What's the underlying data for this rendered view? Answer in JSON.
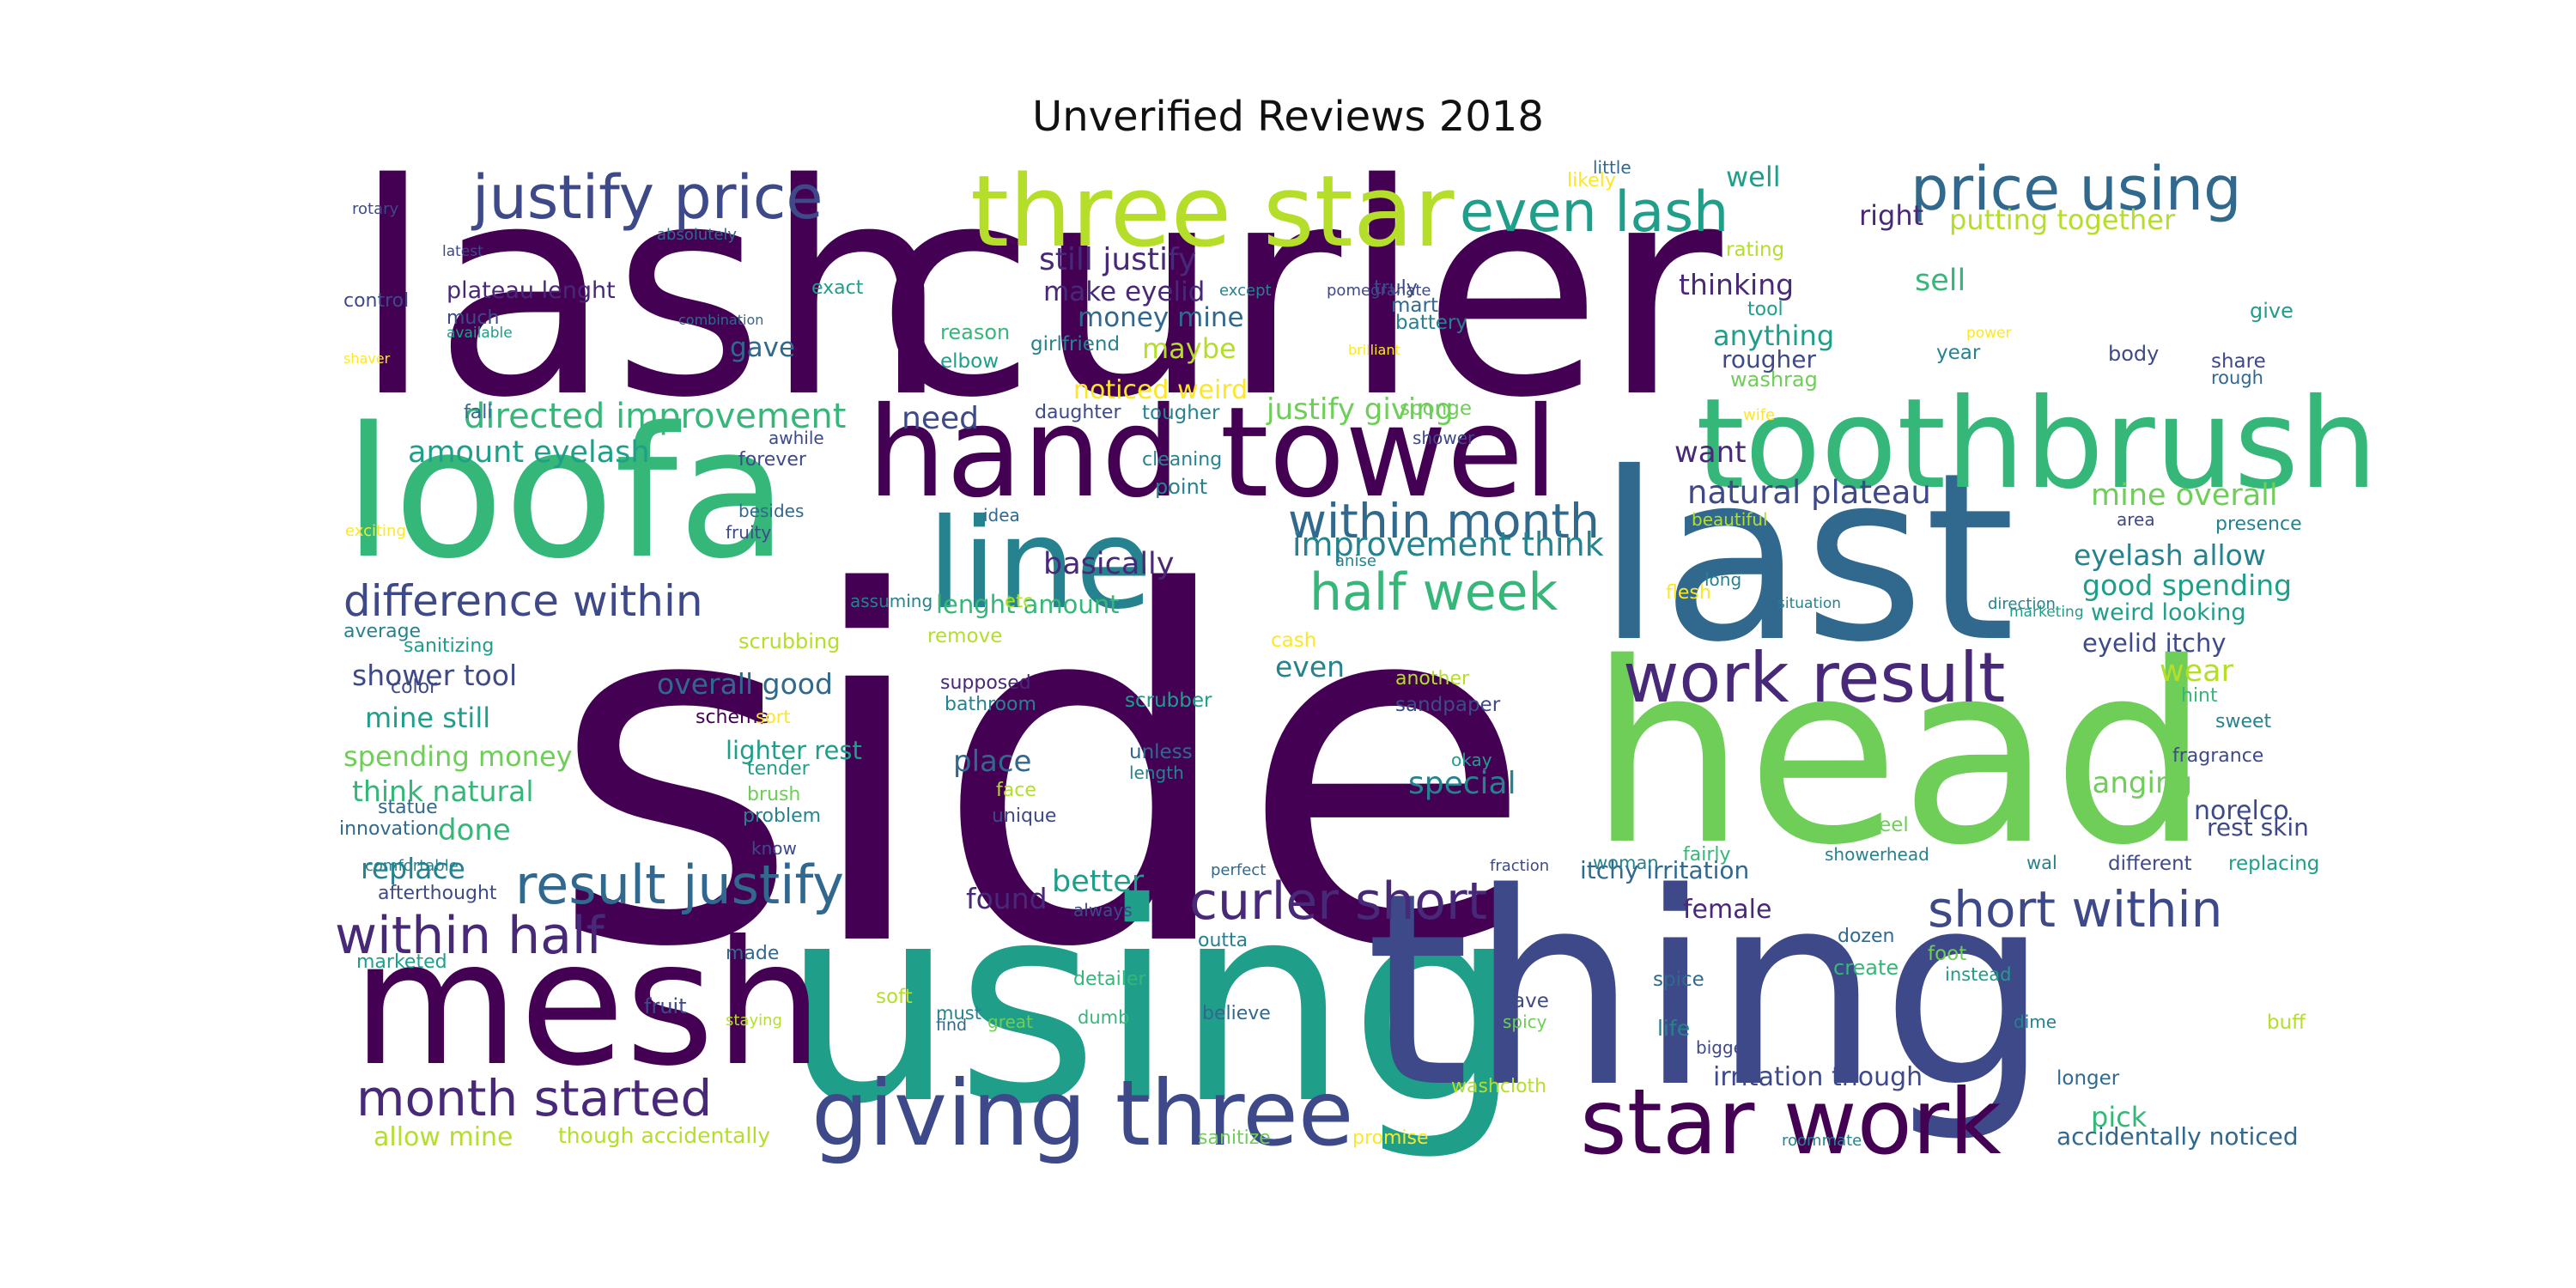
{
  "title": "Unverified Reviews 2018",
  "palette": [
    "#440154",
    "#482878",
    "#3e4989",
    "#31688e",
    "#26828e",
    "#1f9e89",
    "#35b779",
    "#6ece58",
    "#b5de2b",
    "#fde725"
  ],
  "words": [
    {
      "text": "side",
      "color": "#440154"
    },
    {
      "text": "lash",
      "color": "#440154"
    },
    {
      "text": "curler",
      "color": "#440154"
    },
    {
      "text": "using",
      "color": "#1f9e89"
    },
    {
      "text": "thing",
      "color": "#3e4989"
    },
    {
      "text": "head",
      "color": "#6ece58"
    },
    {
      "text": "last",
      "color": "#31688e"
    },
    {
      "text": "loofa",
      "color": "#35b779"
    },
    {
      "text": "mesh",
      "color": "#440154"
    },
    {
      "text": "hand towel",
      "color": "#440154"
    },
    {
      "text": "toothbrush",
      "color": "#35b779"
    },
    {
      "text": "line",
      "color": "#26828e"
    },
    {
      "text": "three star",
      "color": "#b5de2b"
    },
    {
      "text": "giving three",
      "color": "#3e4989"
    },
    {
      "text": "star work",
      "color": "#440154"
    },
    {
      "text": "work result",
      "color": "#482878"
    },
    {
      "text": "justify price",
      "color": "#3e4989"
    },
    {
      "text": "price using",
      "color": "#31688e"
    },
    {
      "text": "even lash",
      "color": "#1f9e89"
    },
    {
      "text": "half week",
      "color": "#35b779"
    },
    {
      "text": "within month",
      "color": "#31688e"
    },
    {
      "text": "curler short",
      "color": "#482878"
    },
    {
      "text": "short within",
      "color": "#3e4989"
    },
    {
      "text": "result justify",
      "color": "#31688e"
    },
    {
      "text": "within half",
      "color": "#482878"
    },
    {
      "text": "month started",
      "color": "#482878"
    },
    {
      "text": "difference within",
      "color": "#3e4989"
    },
    {
      "text": "directed improvement",
      "color": "#35b779"
    },
    {
      "text": "amount eyelash",
      "color": "#1f9e89"
    },
    {
      "text": "improvement think",
      "color": "#26828e"
    },
    {
      "text": "natural plateau",
      "color": "#3e4989"
    },
    {
      "text": "mine overall",
      "color": "#6ece58"
    },
    {
      "text": "eyelash allow",
      "color": "#26828e"
    },
    {
      "text": "good spending",
      "color": "#1f9e89"
    },
    {
      "text": "still justify",
      "color": "#482878"
    },
    {
      "text": "make eyelid",
      "color": "#482878"
    },
    {
      "text": "money mine",
      "color": "#31688e"
    },
    {
      "text": "justify giving",
      "color": "#6ece58"
    },
    {
      "text": "plateau lenght",
      "color": "#482878"
    },
    {
      "text": "putting together",
      "color": "#b5de2b"
    },
    {
      "text": "shower tool",
      "color": "#3e4989"
    },
    {
      "text": "overall good",
      "color": "#31688e"
    },
    {
      "text": "mine still",
      "color": "#1f9e89"
    },
    {
      "text": "spending money",
      "color": "#6ece58"
    },
    {
      "text": "think natural",
      "color": "#35b779"
    },
    {
      "text": "lighter rest",
      "color": "#1f9e89"
    },
    {
      "text": "itchy irritation",
      "color": "#31688e"
    },
    {
      "text": "irritation though",
      "color": "#3e4989"
    },
    {
      "text": "accidentally noticed",
      "color": "#31688e"
    },
    {
      "text": "allow mine",
      "color": "#b5de2b"
    },
    {
      "text": "though accidentally",
      "color": "#b5de2b"
    },
    {
      "text": "eyelid itchy",
      "color": "#3e4989"
    },
    {
      "text": "weird looking",
      "color": "#1f9e89"
    },
    {
      "text": "rest skin",
      "color": "#3e4989"
    },
    {
      "text": "noticed weird",
      "color": "#fde725"
    },
    {
      "text": "lenght amount",
      "color": "#35b779"
    },
    {
      "text": "well",
      "color": "#1f9e89"
    },
    {
      "text": "right",
      "color": "#482878"
    },
    {
      "text": "sell",
      "color": "#35b779"
    },
    {
      "text": "thinking",
      "color": "#482878"
    },
    {
      "text": "anything",
      "color": "#1f9e89"
    },
    {
      "text": "rougher",
      "color": "#3e4989"
    },
    {
      "text": "need",
      "color": "#3e4989"
    },
    {
      "text": "gave",
      "color": "#31688e"
    },
    {
      "text": "maybe",
      "color": "#b5de2b"
    },
    {
      "text": "want",
      "color": "#482878"
    },
    {
      "text": "basically",
      "color": "#482878"
    },
    {
      "text": "place",
      "color": "#31688e"
    },
    {
      "text": "special",
      "color": "#26828e"
    },
    {
      "text": "hanging",
      "color": "#6ece58"
    },
    {
      "text": "wear",
      "color": "#b5de2b"
    },
    {
      "text": "norelco",
      "color": "#3e4989"
    },
    {
      "text": "done",
      "color": "#35b779"
    },
    {
      "text": "replace",
      "color": "#26828e"
    },
    {
      "text": "better",
      "color": "#1f9e89"
    },
    {
      "text": "found",
      "color": "#482878"
    },
    {
      "text": "female",
      "color": "#482878"
    },
    {
      "text": "even",
      "color": "#26828e"
    },
    {
      "text": "pick",
      "color": "#35b779"
    },
    {
      "text": "rating",
      "color": "#b5de2b"
    },
    {
      "text": "tool",
      "color": "#1f9e89"
    },
    {
      "text": "year",
      "color": "#26828e"
    },
    {
      "text": "washrag",
      "color": "#6ece58"
    },
    {
      "text": "body",
      "color": "#3e4989"
    },
    {
      "text": "share",
      "color": "#3e4989"
    },
    {
      "text": "rough",
      "color": "#31688e"
    },
    {
      "text": "give",
      "color": "#1f9e89"
    },
    {
      "text": "mart",
      "color": "#31688e"
    },
    {
      "text": "truly",
      "color": "#3e4989"
    },
    {
      "text": "battery",
      "color": "#26828e"
    },
    {
      "text": "exact",
      "color": "#1f9e89"
    },
    {
      "text": "reason",
      "color": "#35b779"
    },
    {
      "text": "elbow",
      "color": "#1f9e89"
    },
    {
      "text": "girlfriend",
      "color": "#26828e"
    },
    {
      "text": "daughter",
      "color": "#3e4989"
    },
    {
      "text": "tougher",
      "color": "#26828e"
    },
    {
      "text": "cleaning",
      "color": "#26828e"
    },
    {
      "text": "point",
      "color": "#26828e"
    },
    {
      "text": "sponge",
      "color": "#6ece58"
    },
    {
      "text": "shower",
      "color": "#3e4989"
    },
    {
      "text": "idea",
      "color": "#31688e"
    },
    {
      "text": "forever",
      "color": "#3e4989"
    },
    {
      "text": "awhile",
      "color": "#3e4989"
    },
    {
      "text": "fall",
      "color": "#31688e"
    },
    {
      "text": "much",
      "color": "#3e4989"
    },
    {
      "text": "control",
      "color": "#3e4989"
    },
    {
      "text": "besides",
      "color": "#31688e"
    },
    {
      "text": "fruity",
      "color": "#3e4989"
    },
    {
      "text": "assuming",
      "color": "#26828e"
    },
    {
      "text": "etc",
      "color": "#b5de2b"
    },
    {
      "text": "remove",
      "color": "#b5de2b"
    },
    {
      "text": "supposed",
      "color": "#482878"
    },
    {
      "text": "bathroom",
      "color": "#26828e"
    },
    {
      "text": "scrubber",
      "color": "#1f9e89"
    },
    {
      "text": "another",
      "color": "#b5de2b"
    },
    {
      "text": "sandpaper",
      "color": "#3e4989"
    },
    {
      "text": "okay",
      "color": "#1f9e89"
    },
    {
      "text": "unless",
      "color": "#31688e"
    },
    {
      "text": "length",
      "color": "#26828e"
    },
    {
      "text": "cash",
      "color": "#fde725"
    },
    {
      "text": "flesh",
      "color": "#fde725"
    },
    {
      "text": "scrubbing",
      "color": "#b5de2b"
    },
    {
      "text": "sanitizing",
      "color": "#1f9e89"
    },
    {
      "text": "average",
      "color": "#26828e"
    },
    {
      "text": "color",
      "color": "#3e4989"
    },
    {
      "text": "scheme",
      "color": "#440154"
    },
    {
      "text": "sort",
      "color": "#fde725"
    },
    {
      "text": "tender",
      "color": "#1f9e89"
    },
    {
      "text": "brush",
      "color": "#6ece58"
    },
    {
      "text": "face",
      "color": "#b5de2b"
    },
    {
      "text": "statue",
      "color": "#31688e"
    },
    {
      "text": "problem",
      "color": "#26828e"
    },
    {
      "text": "unique",
      "color": "#3e4989"
    },
    {
      "text": "innovation",
      "color": "#31688e"
    },
    {
      "text": "know",
      "color": "#3e4989"
    },
    {
      "text": "comfortable",
      "color": "#26828e"
    },
    {
      "text": "afterthought",
      "color": "#3e4989"
    },
    {
      "text": "perfect",
      "color": "#31688e"
    },
    {
      "text": "always",
      "color": "#3e4989"
    },
    {
      "text": "outta",
      "color": "#26828e"
    },
    {
      "text": "made",
      "color": "#31688e"
    },
    {
      "text": "marketed",
      "color": "#1f9e89"
    },
    {
      "text": "detailer",
      "color": "#35b779"
    },
    {
      "text": "dumb",
      "color": "#35b779"
    },
    {
      "text": "believe",
      "color": "#31688e"
    },
    {
      "text": "soft",
      "color": "#b5de2b"
    },
    {
      "text": "must",
      "color": "#26828e"
    },
    {
      "text": "find",
      "color": "#31688e"
    },
    {
      "text": "great",
      "color": "#6ece58"
    },
    {
      "text": "fruit",
      "color": "#3e4989"
    },
    {
      "text": "staying",
      "color": "#b5de2b"
    },
    {
      "text": "flip",
      "color": "#1f9e89"
    },
    {
      "text": "save",
      "color": "#3e4989"
    },
    {
      "text": "spicy",
      "color": "#6ece58"
    },
    {
      "text": "washcloth",
      "color": "#b5de2b"
    },
    {
      "text": "sanitize",
      "color": "#6ece58"
    },
    {
      "text": "promise",
      "color": "#fde725"
    },
    {
      "text": "life",
      "color": "#26828e"
    },
    {
      "text": "spice",
      "color": "#31688e"
    },
    {
      "text": "biggest",
      "color": "#3e4989"
    },
    {
      "text": "create",
      "color": "#35b779"
    },
    {
      "text": "foot",
      "color": "#6ece58"
    },
    {
      "text": "instead",
      "color": "#1f9e89"
    },
    {
      "text": "dime",
      "color": "#26828e"
    },
    {
      "text": "buff",
      "color": "#b5de2b"
    },
    {
      "text": "longer",
      "color": "#31688e"
    },
    {
      "text": "roommate",
      "color": "#26828e"
    },
    {
      "text": "dozen",
      "color": "#31688e"
    },
    {
      "text": "feel",
      "color": "#6ece58"
    },
    {
      "text": "fairly",
      "color": "#35b779"
    },
    {
      "text": "showerhead",
      "color": "#26828e"
    },
    {
      "text": "woman",
      "color": "#26828e"
    },
    {
      "text": "wal",
      "color": "#26828e"
    },
    {
      "text": "different",
      "color": "#3e4989"
    },
    {
      "text": "replacing",
      "color": "#1f9e89"
    },
    {
      "text": "fraction",
      "color": "#3e4989"
    },
    {
      "text": "likely",
      "color": "#fde725"
    },
    {
      "text": "little",
      "color": "#31688e"
    },
    {
      "text": "rotary",
      "color": "#3e4989"
    },
    {
      "text": "absolutely",
      "color": "#31688e"
    },
    {
      "text": "latest",
      "color": "#3e4989"
    },
    {
      "text": "except",
      "color": "#26828e"
    },
    {
      "text": "pomegranate",
      "color": "#3e4989"
    },
    {
      "text": "brilliant",
      "color": "#fde725"
    },
    {
      "text": "available",
      "color": "#1f9e89"
    },
    {
      "text": "shaver",
      "color": "#fde725"
    },
    {
      "text": "combination",
      "color": "#31688e"
    },
    {
      "text": "power",
      "color": "#fde725"
    },
    {
      "text": "wife",
      "color": "#fde725"
    },
    {
      "text": "beautiful",
      "color": "#b5de2b"
    },
    {
      "text": "area",
      "color": "#3e4989"
    },
    {
      "text": "presence",
      "color": "#26828e"
    },
    {
      "text": "anise",
      "color": "#26828e"
    },
    {
      "text": "long",
      "color": "#26828e"
    },
    {
      "text": "situation",
      "color": "#26828e"
    },
    {
      "text": "marketing",
      "color": "#1f9e89"
    },
    {
      "text": "direction",
      "color": "#26828e"
    },
    {
      "text": "hint",
      "color": "#35b779"
    },
    {
      "text": "sweet",
      "color": "#26828e"
    },
    {
      "text": "fragrance",
      "color": "#3e4989"
    },
    {
      "text": "exciting",
      "color": "#fde725"
    }
  ]
}
